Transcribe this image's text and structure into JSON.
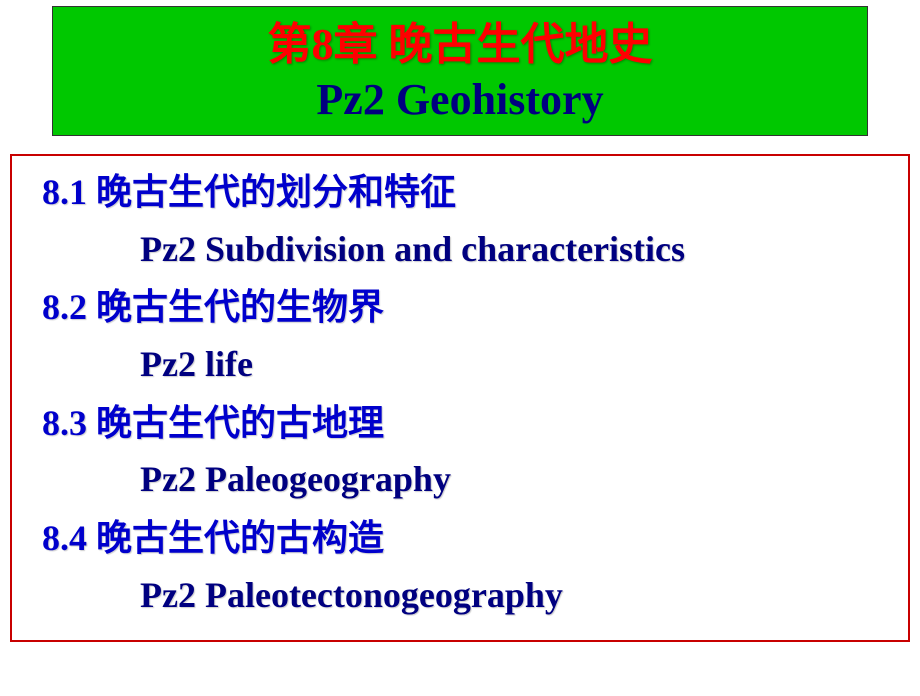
{
  "title": {
    "cn": "第8章  晚古生代地史",
    "en": "Pz2 Geohistory"
  },
  "sections": [
    {
      "cn": "8.1  晚古生代的划分和特征",
      "en": "Pz2 Subdivision and characteristics"
    },
    {
      "cn": "8.2  晚古生代的生物界",
      "en": "Pz2 life"
    },
    {
      "cn": "8.3  晚古生代的古地理",
      "en": "Pz2 Paleogeography"
    },
    {
      "cn": "8.4  晚古生代的古构造",
      "en": "Pz2 Paleotectonogeography"
    }
  ],
  "colors": {
    "title_bg": "#00c800",
    "title_cn_color": "#ff0000",
    "title_en_color": "#000080",
    "content_border": "#c80000",
    "section_cn_color": "#0000cc",
    "section_en_color": "#000080",
    "background": "#ffffff"
  },
  "typography": {
    "title_fontsize": 44,
    "section_fontsize": 36,
    "cn_font": "SimSun",
    "en_font": "Times New Roman"
  }
}
